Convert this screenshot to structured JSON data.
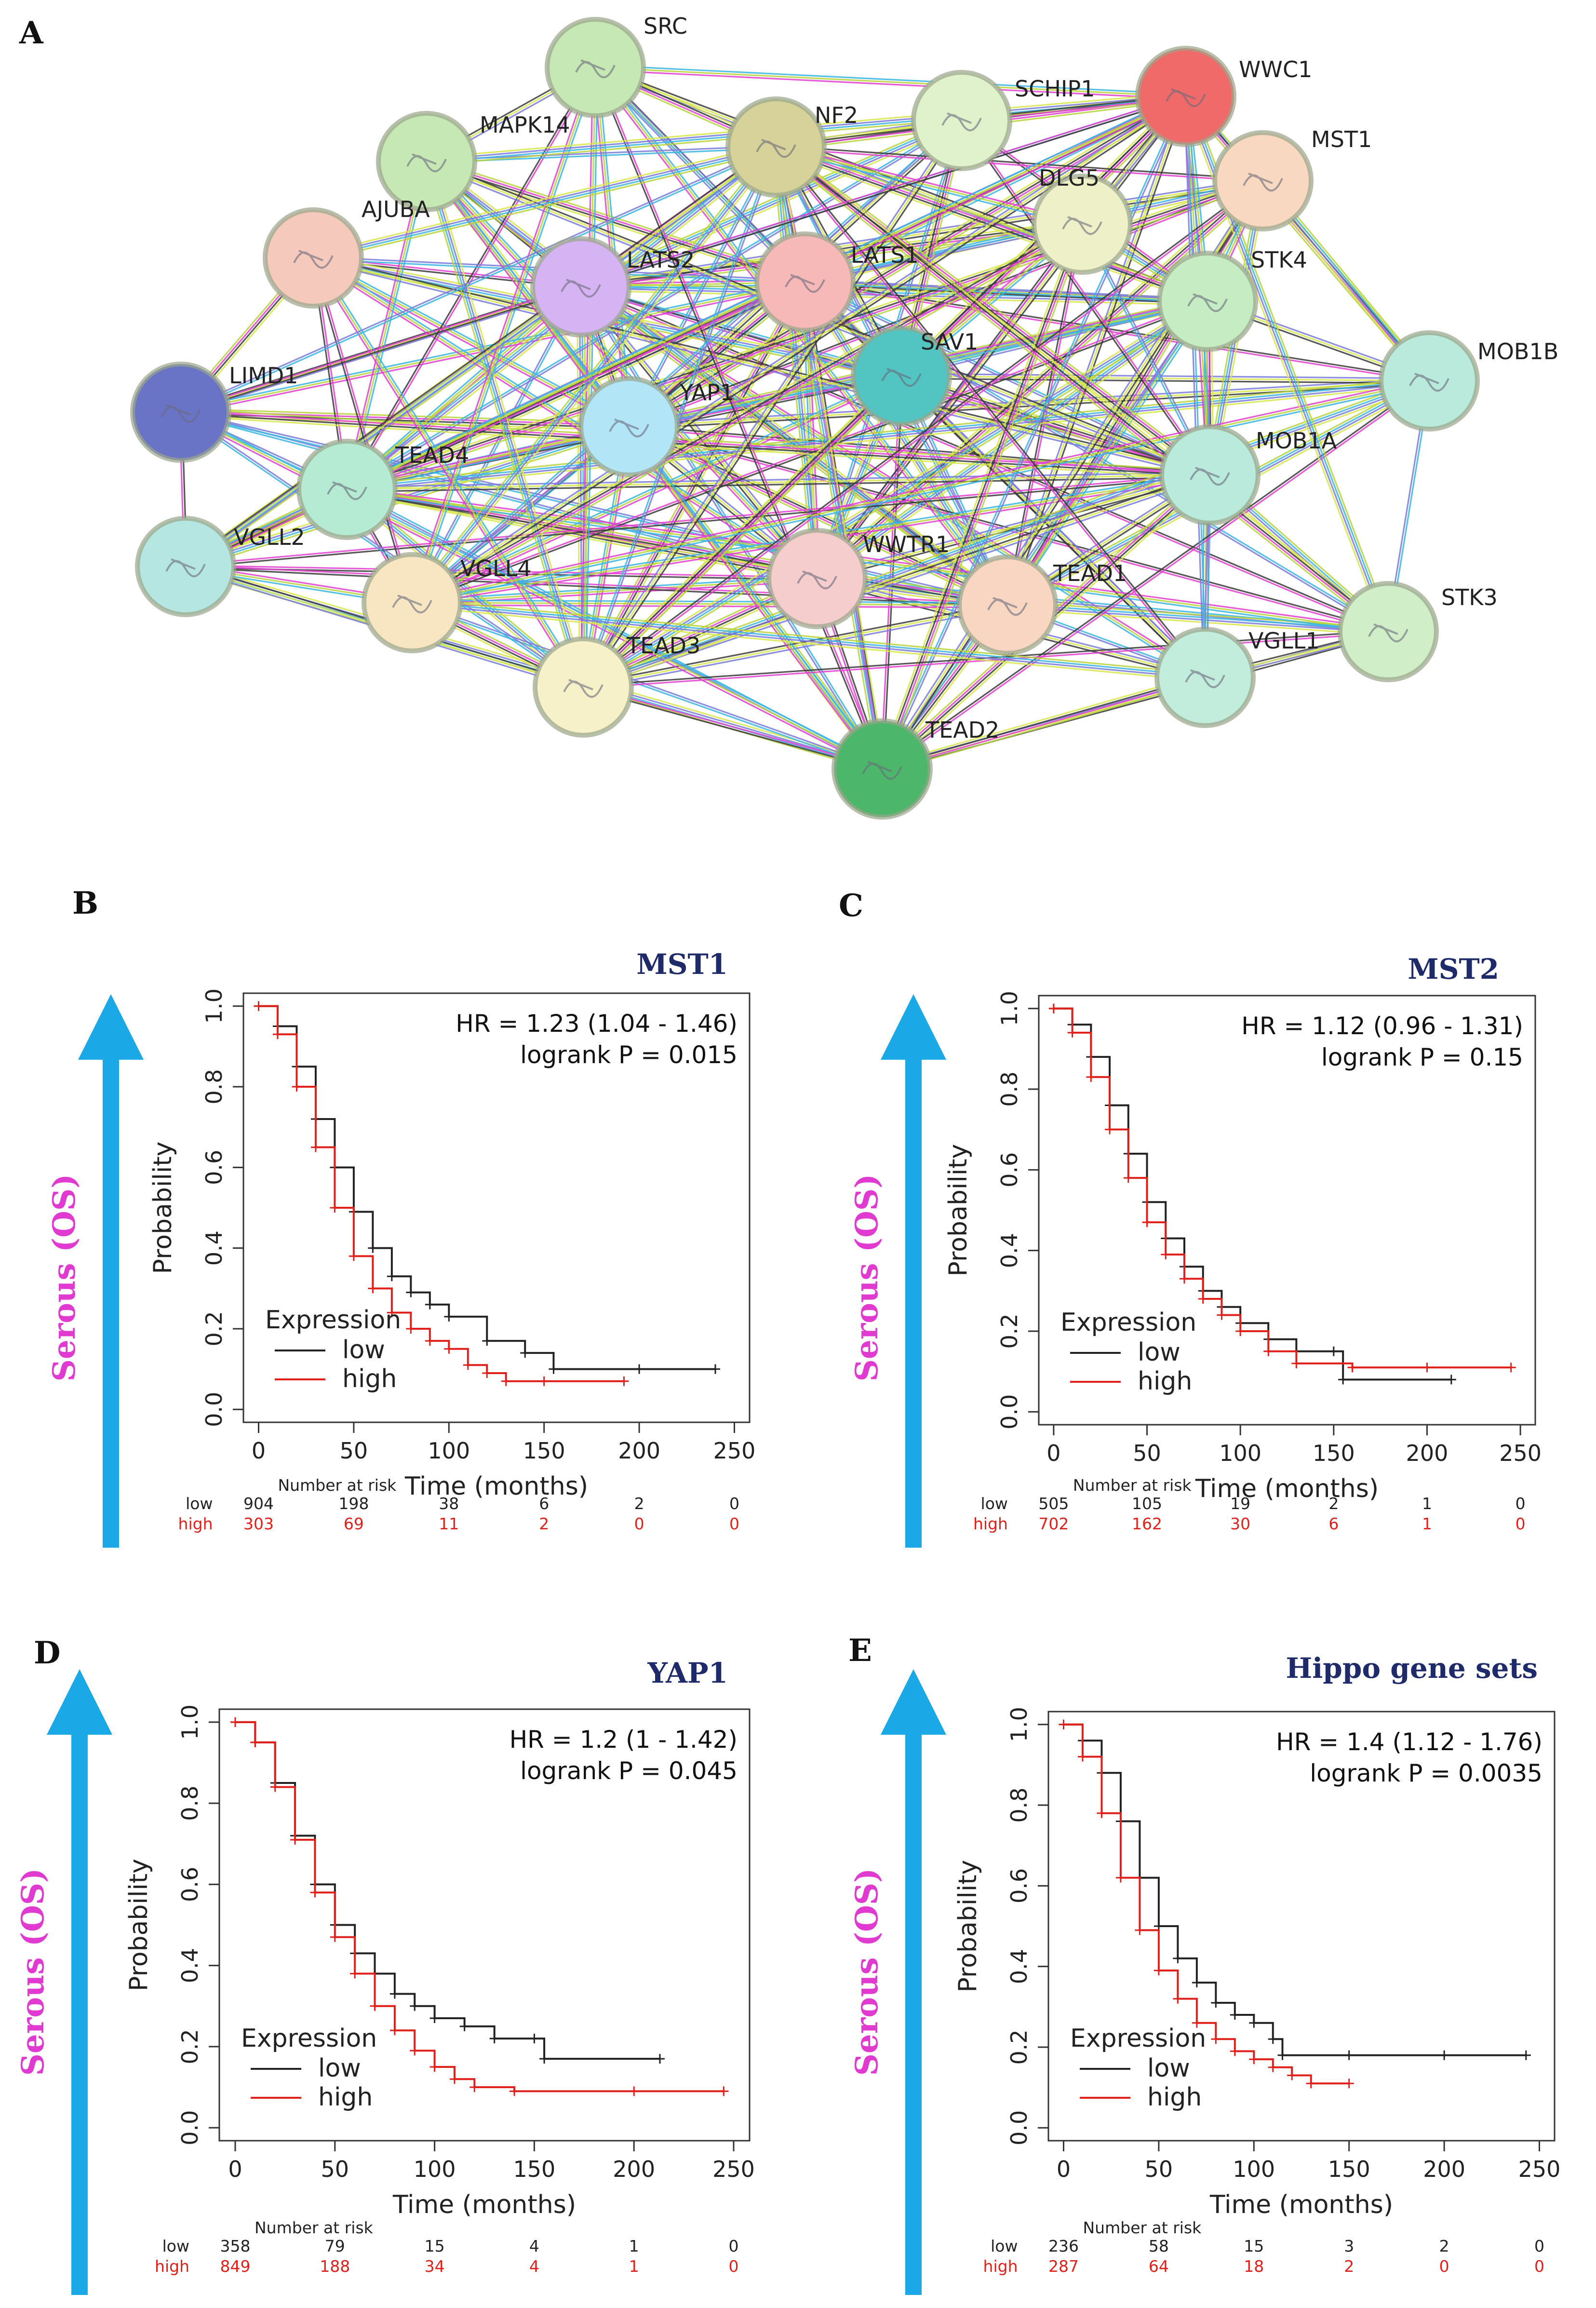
{
  "network": {
    "panel_label": "A",
    "nodes": [
      {
        "id": "SRC",
        "color": "#c6e8b4"
      },
      {
        "id": "MAPK14",
        "color": "#c6e8b4"
      },
      {
        "id": "NF2",
        "color": "#d7d29a"
      },
      {
        "id": "SCHIP1",
        "color": "#dff2cc"
      },
      {
        "id": "WWC1",
        "color": "#f06a6a"
      },
      {
        "id": "MST1",
        "color": "#f8d8c0"
      },
      {
        "id": "DLG5",
        "color": "#eef1c8"
      },
      {
        "id": "AJUBA",
        "color": "#f6c9bd"
      },
      {
        "id": "LATS2",
        "color": "#d6b3f3"
      },
      {
        "id": "LATS1",
        "color": "#f7b8b8"
      },
      {
        "id": "STK4",
        "color": "#c5ecc2"
      },
      {
        "id": "SAV1",
        "color": "#52c4c2"
      },
      {
        "id": "MOB1B",
        "color": "#b9eadb"
      },
      {
        "id": "LIMD1",
        "color": "#6a74c6"
      },
      {
        "id": "YAP1",
        "color": "#b2e6f7"
      },
      {
        "id": "MOB1A",
        "color": "#b9eadb"
      },
      {
        "id": "TEAD4",
        "color": "#b5ebd3"
      },
      {
        "id": "VGLL2",
        "color": "#b6e6e2"
      },
      {
        "id": "VGLL4",
        "color": "#f8e6c2"
      },
      {
        "id": "WWTR1",
        "color": "#f6cdcd"
      },
      {
        "id": "TEAD1",
        "color": "#f8d6c2"
      },
      {
        "id": "STK3",
        "color": "#d0efc8"
      },
      {
        "id": "VGLL1",
        "color": "#c2ecdc"
      },
      {
        "id": "TEAD3",
        "color": "#f6f1c8"
      },
      {
        "id": "TEAD2",
        "color": "#4cb66a"
      }
    ]
  },
  "panels": [
    {
      "label": "B",
      "title": "MST1",
      "side_label": "Serous (OS)"
    },
    {
      "label": "C",
      "title": "MST2",
      "side_label": "Serous (OS)"
    },
    {
      "label": "D",
      "title": "YAP1",
      "side_label": "Serous (OS)"
    },
    {
      "label": "E",
      "title": "Hippo gene sets",
      "side_label": "Serous (OS)"
    }
  ],
  "chart_data": [
    {
      "type": "line",
      "title": "MST1",
      "xlabel": "Time (months)",
      "ylabel": "Probability",
      "xlim": [
        0,
        250
      ],
      "ylim": [
        0,
        1
      ],
      "xticks": [
        "0",
        "50",
        "100",
        "150",
        "200",
        "250"
      ],
      "yticks": [
        "0.0",
        "0.2",
        "0.4",
        "0.6",
        "0.8",
        "1.0"
      ],
      "hr_text": "HR = 1.23 (1.04 - 1.46)",
      "p_text": "logrank P = 0.015",
      "legend_title": "Expression",
      "series": [
        {
          "name": "low",
          "color": "#222222",
          "x": [
            0,
            10,
            20,
            30,
            40,
            50,
            60,
            70,
            80,
            90,
            100,
            120,
            140,
            155,
            200,
            240
          ],
          "y": [
            1.0,
            0.95,
            0.85,
            0.72,
            0.6,
            0.49,
            0.4,
            0.33,
            0.29,
            0.26,
            0.23,
            0.17,
            0.14,
            0.1,
            0.1,
            0.1
          ]
        },
        {
          "name": "high",
          "color": "#e0201a",
          "x": [
            0,
            10,
            20,
            30,
            40,
            50,
            60,
            70,
            80,
            90,
            100,
            110,
            120,
            130,
            150,
            192
          ],
          "y": [
            1.0,
            0.93,
            0.8,
            0.65,
            0.5,
            0.38,
            0.3,
            0.24,
            0.2,
            0.17,
            0.15,
            0.11,
            0.09,
            0.07,
            0.07,
            0.07
          ]
        }
      ],
      "risk": {
        "heading": "Number at risk",
        "rows": [
          {
            "name": "low",
            "values": [
              "904",
              "198",
              "38",
              "6",
              "2",
              "0"
            ]
          },
          {
            "name": "high",
            "values": [
              "303",
              "69",
              "11",
              "2",
              "0",
              "0"
            ]
          }
        ]
      }
    },
    {
      "type": "line",
      "title": "MST2",
      "xlabel": "Time (months)",
      "ylabel": "Probability",
      "xlim": [
        0,
        250
      ],
      "ylim": [
        0,
        1
      ],
      "xticks": [
        "0",
        "50",
        "100",
        "150",
        "200",
        "250"
      ],
      "yticks": [
        "0.0",
        "0.2",
        "0.4",
        "0.6",
        "0.8",
        "1.0"
      ],
      "hr_text": "HR = 1.12 (0.96 - 1.31)",
      "p_text": "logrank P = 0.15",
      "legend_title": "Expression",
      "series": [
        {
          "name": "low",
          "color": "#222222",
          "x": [
            0,
            10,
            20,
            30,
            40,
            50,
            60,
            70,
            80,
            90,
            100,
            115,
            130,
            150,
            155,
            213
          ],
          "y": [
            1.0,
            0.96,
            0.88,
            0.76,
            0.64,
            0.52,
            0.43,
            0.36,
            0.3,
            0.26,
            0.22,
            0.18,
            0.15,
            0.15,
            0.08,
            0.08
          ]
        },
        {
          "name": "high",
          "color": "#e0201a",
          "x": [
            0,
            10,
            20,
            30,
            40,
            50,
            60,
            70,
            80,
            90,
            100,
            115,
            130,
            160,
            200,
            245
          ],
          "y": [
            1.0,
            0.94,
            0.83,
            0.7,
            0.58,
            0.47,
            0.39,
            0.33,
            0.28,
            0.24,
            0.2,
            0.15,
            0.12,
            0.11,
            0.11,
            0.11
          ]
        }
      ],
      "risk": {
        "heading": "Number at risk",
        "rows": [
          {
            "name": "low",
            "values": [
              "505",
              "105",
              "19",
              "2",
              "1",
              "0"
            ]
          },
          {
            "name": "high",
            "values": [
              "702",
              "162",
              "30",
              "6",
              "1",
              "0"
            ]
          }
        ]
      }
    },
    {
      "type": "line",
      "title": "YAP1",
      "xlabel": "Time (months)",
      "ylabel": "Probability",
      "xlim": [
        0,
        250
      ],
      "ylim": [
        0,
        1
      ],
      "xticks": [
        "0",
        "50",
        "100",
        "150",
        "200",
        "250"
      ],
      "yticks": [
        "0.0",
        "0.2",
        "0.4",
        "0.6",
        "0.8",
        "1.0"
      ],
      "hr_text": "HR = 1.2 (1 - 1.42)",
      "p_text": "logrank P = 0.045",
      "legend_title": "Expression",
      "series": [
        {
          "name": "low",
          "color": "#222222",
          "x": [
            0,
            10,
            20,
            30,
            40,
            50,
            60,
            70,
            80,
            90,
            100,
            115,
            130,
            150,
            155,
            213
          ],
          "y": [
            1.0,
            0.95,
            0.85,
            0.72,
            0.6,
            0.5,
            0.43,
            0.38,
            0.33,
            0.3,
            0.27,
            0.25,
            0.22,
            0.22,
            0.17,
            0.17
          ]
        },
        {
          "name": "high",
          "color": "#e0201a",
          "x": [
            0,
            10,
            20,
            30,
            40,
            50,
            60,
            70,
            80,
            90,
            100,
            110,
            120,
            140,
            200,
            245
          ],
          "y": [
            1.0,
            0.95,
            0.84,
            0.71,
            0.58,
            0.47,
            0.38,
            0.3,
            0.24,
            0.19,
            0.15,
            0.12,
            0.1,
            0.09,
            0.09,
            0.09
          ]
        }
      ],
      "risk": {
        "heading": "Number at risk",
        "rows": [
          {
            "name": "low",
            "values": [
              "358",
              "79",
              "15",
              "4",
              "1",
              "0"
            ]
          },
          {
            "name": "high",
            "values": [
              "849",
              "188",
              "34",
              "4",
              "1",
              "0"
            ]
          }
        ]
      }
    },
    {
      "type": "line",
      "title": "Hippo gene sets",
      "xlabel": "Time (months)",
      "ylabel": "Probability",
      "xlim": [
        0,
        250
      ],
      "ylim": [
        0,
        1
      ],
      "xticks": [
        "0",
        "50",
        "100",
        "150",
        "200",
        "250"
      ],
      "yticks": [
        "0.0",
        "0.2",
        "0.4",
        "0.6",
        "0.8",
        "1.0"
      ],
      "hr_text": "HR = 1.4 (1.12 - 1.76)",
      "p_text": "logrank P = 0.0035",
      "legend_title": "Expression",
      "series": [
        {
          "name": "low",
          "color": "#222222",
          "x": [
            0,
            10,
            20,
            30,
            40,
            50,
            60,
            70,
            80,
            90,
            100,
            110,
            115,
            150,
            200,
            243
          ],
          "y": [
            1.0,
            0.96,
            0.88,
            0.76,
            0.62,
            0.5,
            0.42,
            0.36,
            0.31,
            0.28,
            0.26,
            0.22,
            0.18,
            0.18,
            0.18,
            0.18
          ]
        },
        {
          "name": "high",
          "color": "#e0201a",
          "x": [
            0,
            10,
            20,
            30,
            40,
            50,
            60,
            70,
            80,
            90,
            100,
            110,
            120,
            130,
            150
          ],
          "y": [
            1.0,
            0.92,
            0.78,
            0.62,
            0.49,
            0.39,
            0.32,
            0.26,
            0.22,
            0.19,
            0.17,
            0.15,
            0.13,
            0.11,
            0.11
          ]
        }
      ],
      "risk": {
        "heading": "Number at risk",
        "rows": [
          {
            "name": "low",
            "values": [
              "236",
              "58",
              "15",
              "3",
              "2",
              "0"
            ]
          },
          {
            "name": "high",
            "values": [
              "287",
              "64",
              "18",
              "2",
              "0",
              "0"
            ]
          }
        ]
      }
    }
  ]
}
